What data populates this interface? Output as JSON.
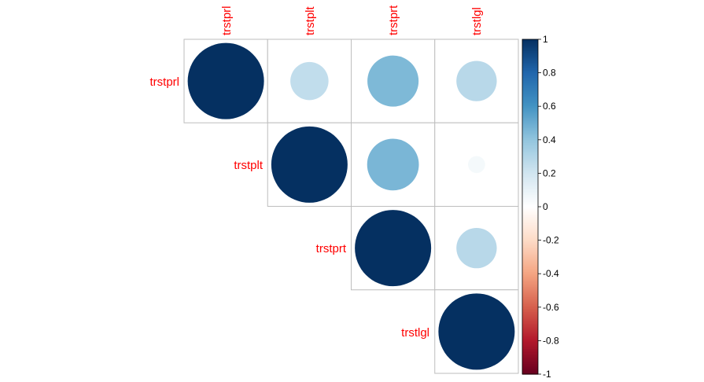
{
  "chart_data": {
    "type": "heatmap",
    "style": "correlation matrix, upper triangle, circles sized and colored by correlation",
    "variables": [
      "trstprl",
      "trstplt",
      "trstprt",
      "trstlgl"
    ],
    "matrix": [
      [
        1.0,
        0.25,
        0.45,
        0.28
      ],
      [
        0.25,
        1.0,
        0.46,
        0.05
      ],
      [
        0.45,
        0.46,
        1.0,
        0.28
      ],
      [
        0.28,
        0.05,
        0.28,
        1.0
      ]
    ],
    "triangle": "upper",
    "colorbar": {
      "range": [
        -1,
        1
      ],
      "ticks": [
        "1",
        "0.8",
        "0.6",
        "0.4",
        "0.2",
        "0",
        "-0.2",
        "-0.4",
        "-0.6",
        "-0.8",
        "-1"
      ],
      "placement": "right"
    },
    "label_color": "#ff0000",
    "grid_color": "#bebebe"
  }
}
